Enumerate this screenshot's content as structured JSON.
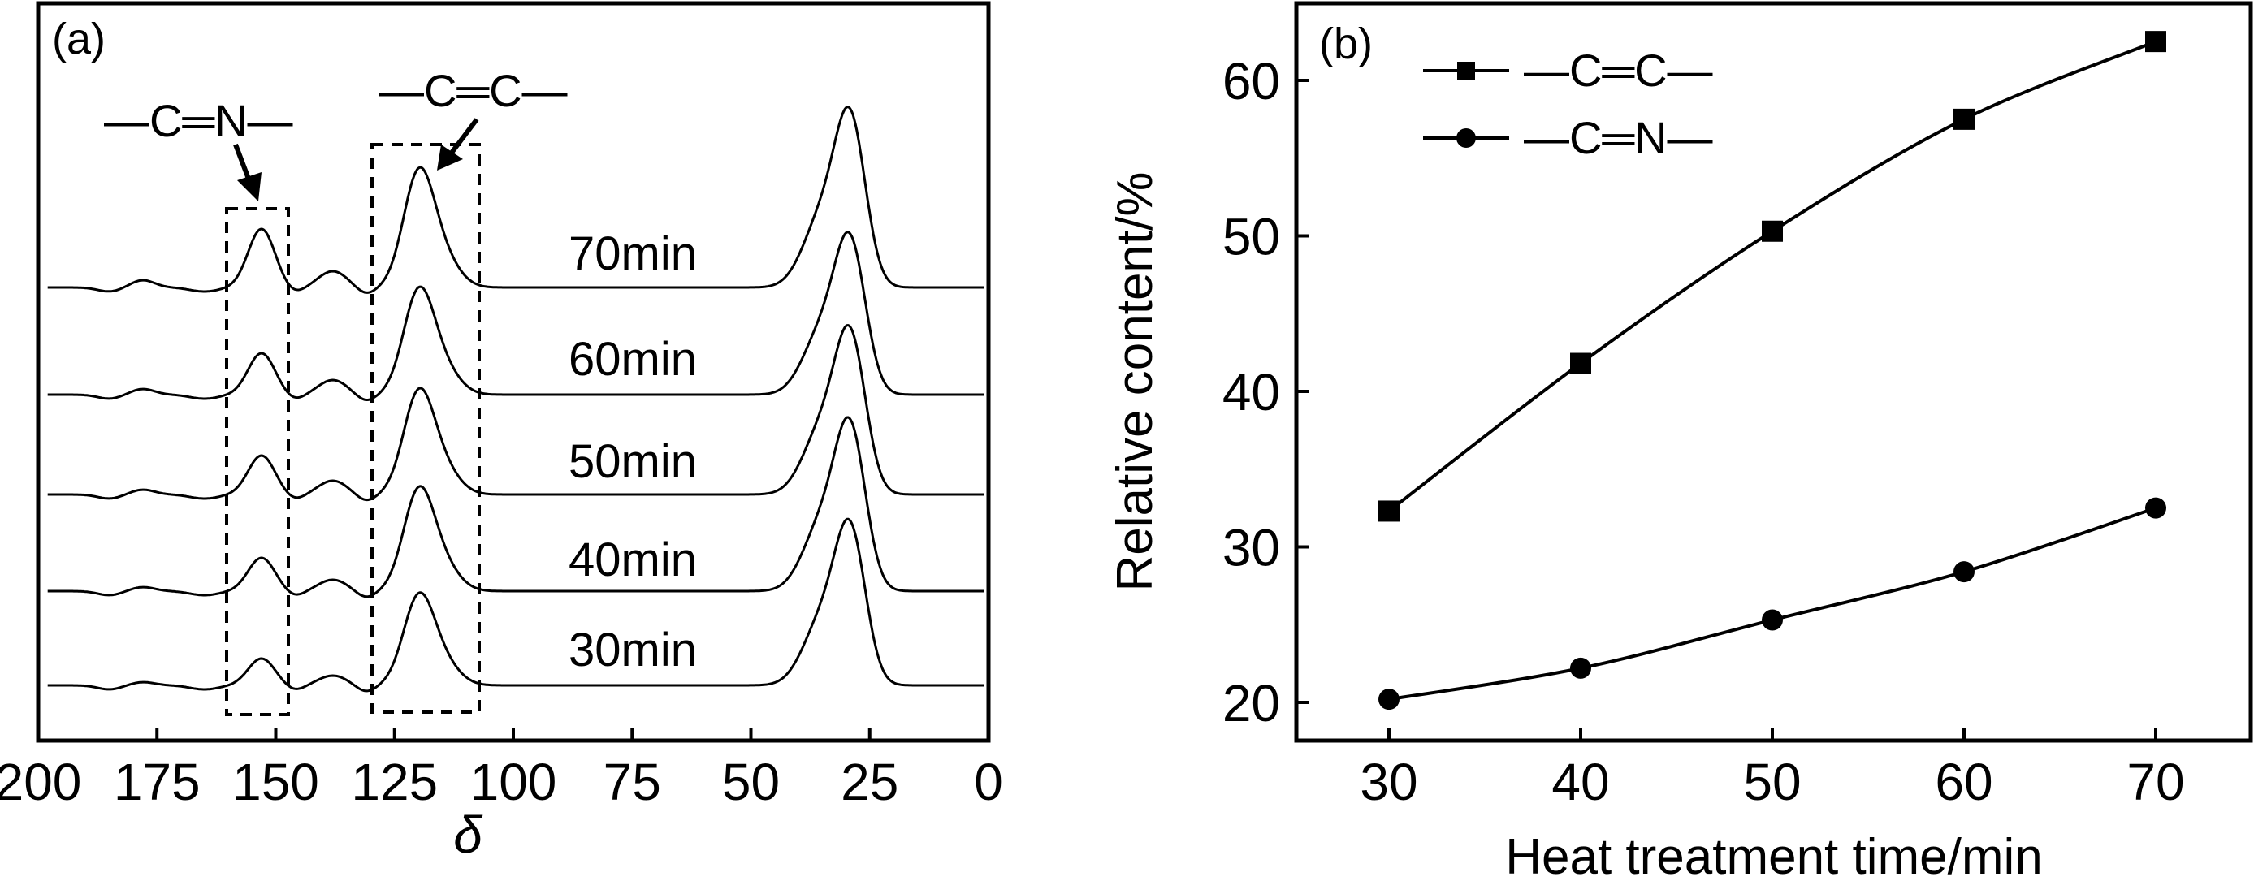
{
  "chart_data": [
    {
      "panel_label": "(a)",
      "type": "line",
      "title": "",
      "xlabel": "δ",
      "ylabel": "",
      "xlim": [
        200,
        0
      ],
      "x_reversed": true,
      "xticks": [
        "200",
        "175",
        "150",
        "125",
        "100",
        "75",
        "50",
        "25",
        "0"
      ],
      "grid": false,
      "annotations": {
        "cn": "—C═N—",
        "cc": "—C═C—"
      },
      "highlight_ranges_ppm": [
        [
          162,
          149
        ],
        [
          131,
          108
        ]
      ],
      "peak_positions_ppm": {
        "minor_1": 178,
        "cn": 153,
        "minor_2": 138,
        "cc": 120,
        "aliphatic": 29
      },
      "series": [
        {
          "name": "30min",
          "peak_intensity_au": {
            "minor_1": 4,
            "cn": 33,
            "minor_2": 12,
            "cc": 122,
            "aliphatic": 221
          }
        },
        {
          "name": "40min",
          "peak_intensity_au": {
            "minor_1": 5,
            "cn": 41,
            "minor_2": 14,
            "cc": 138,
            "aliphatic": 231
          }
        },
        {
          "name": "50min",
          "peak_intensity_au": {
            "minor_1": 6,
            "cn": 48,
            "minor_2": 17,
            "cc": 140,
            "aliphatic": 225
          }
        },
        {
          "name": "60min",
          "peak_intensity_au": {
            "minor_1": 7,
            "cn": 51,
            "minor_2": 18,
            "cc": 142,
            "aliphatic": 216
          }
        },
        {
          "name": "70min",
          "peak_intensity_au": {
            "minor_1": 9,
            "cn": 72,
            "minor_2": 20,
            "cc": 158,
            "aliphatic": 240
          }
        }
      ]
    },
    {
      "panel_label": "(b)",
      "type": "line",
      "title": "",
      "xlabel": "Heat treatment time/min",
      "ylabel": "Relative content/%",
      "x": [
        30,
        40,
        50,
        60,
        70
      ],
      "xlim": [
        25,
        75
      ],
      "ylim": [
        17.5,
        65
      ],
      "xticks": [
        "30",
        "40",
        "50",
        "60",
        "70"
      ],
      "yticks": [
        "20",
        "30",
        "40",
        "50",
        "60"
      ],
      "grid": false,
      "legend_position": "top-left",
      "series": [
        {
          "name": "—C═C—",
          "marker": "square",
          "values": [
            32.3,
            41.8,
            50.3,
            57.5,
            62.5
          ]
        },
        {
          "name": "—C═N—",
          "marker": "circle",
          "values": [
            20.2,
            22.2,
            25.3,
            28.4,
            32.5
          ]
        }
      ]
    }
  ]
}
